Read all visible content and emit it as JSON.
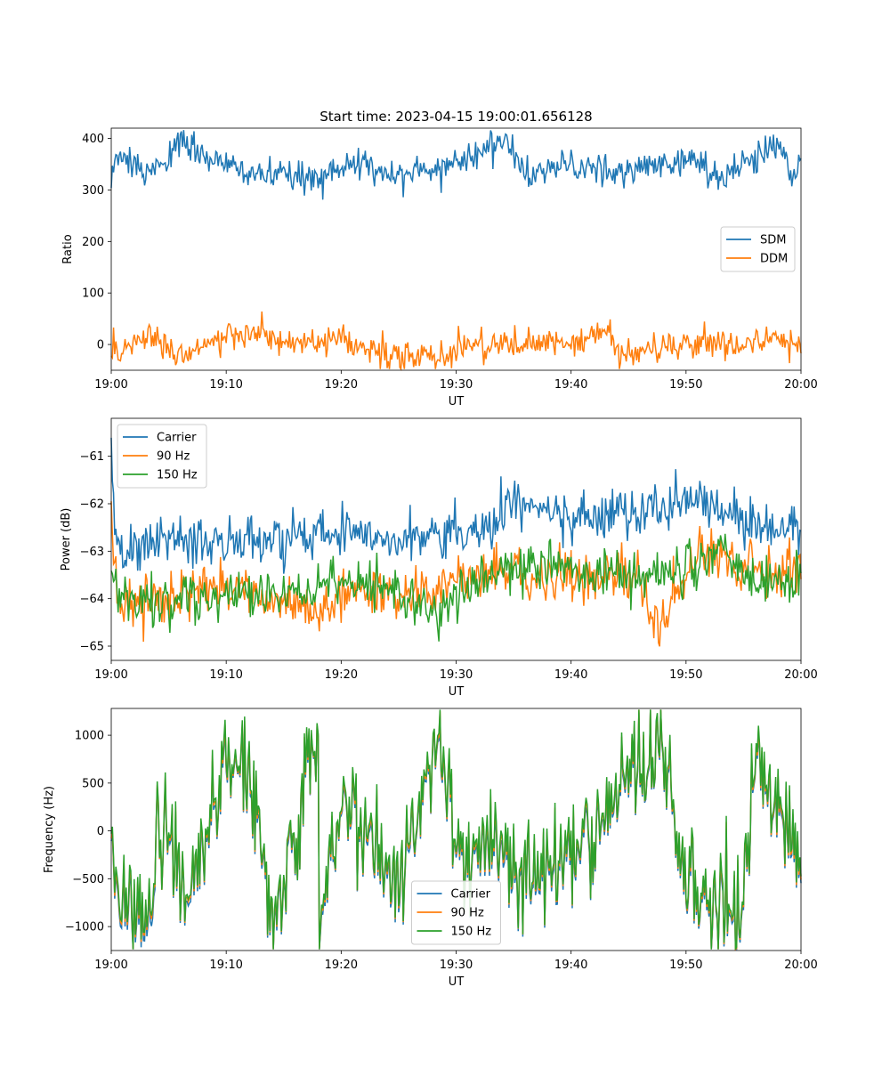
{
  "figure_title": "Start time: 2023-04-15 19:00:01.656128",
  "colors": {
    "blue": "#1f77b4",
    "orange": "#ff7f0e",
    "green": "#2ca02c"
  },
  "chart_data": [
    {
      "type": "line",
      "title": "Start time: 2023-04-15 19:00:01.656128",
      "xlabel": "UT",
      "ylabel": "Ratio",
      "x_range": [
        "19:00",
        "20:00"
      ],
      "x_ticks": [
        "19:00",
        "19:10",
        "19:20",
        "19:30",
        "19:40",
        "19:50",
        "20:00"
      ],
      "ylim": [
        -50,
        420
      ],
      "y_ticks": [
        0,
        100,
        200,
        300,
        400
      ],
      "legend_position": "center-right",
      "series": [
        {
          "name": "SDM",
          "color": "#1f77b4",
          "samples_per_minute": 10,
          "points": [
            [
              0,
              315
            ],
            [
              0.5,
              365
            ],
            [
              2.8,
              330
            ],
            [
              6.2,
              390
            ],
            [
              10,
              345
            ],
            [
              13.1,
              330
            ],
            [
              17.4,
              320
            ],
            [
              20,
              350
            ],
            [
              26.1,
              330
            ],
            [
              30,
              355
            ],
            [
              34,
              397
            ],
            [
              36.2,
              330
            ],
            [
              40,
              350
            ],
            [
              43.2,
              330
            ],
            [
              50,
              360
            ],
            [
              53.2,
              327
            ],
            [
              58.3,
              392
            ],
            [
              59.2,
              330
            ],
            [
              60,
              360
            ]
          ]
        },
        {
          "name": "DDM",
          "color": "#ff7f0e",
          "samples_per_minute": 10,
          "points": [
            [
              0,
              -10
            ],
            [
              0.3,
              -18
            ],
            [
              3.6,
              22
            ],
            [
              5.5,
              -20
            ],
            [
              8,
              0
            ],
            [
              12.6,
              25
            ],
            [
              15,
              0
            ],
            [
              20,
              5
            ],
            [
              25.2,
              -27
            ],
            [
              29.7,
              -20
            ],
            [
              30,
              0
            ],
            [
              40,
              0
            ],
            [
              43.5,
              27
            ],
            [
              44,
              -20
            ],
            [
              50,
              0
            ],
            [
              59.6,
              7
            ],
            [
              60,
              -5
            ]
          ]
        }
      ]
    },
    {
      "type": "line",
      "xlabel": "UT",
      "ylabel": "Power (dB)",
      "x_range": [
        "19:00",
        "20:00"
      ],
      "x_ticks": [
        "19:00",
        "19:10",
        "19:20",
        "19:30",
        "19:40",
        "19:50",
        "20:00"
      ],
      "ylim": [
        -65.3,
        -60.2
      ],
      "y_ticks": [
        -65,
        -64,
        -63,
        -62,
        -61
      ],
      "legend_position": "upper-left",
      "series": [
        {
          "name": "Carrier",
          "color": "#1f77b4",
          "samples_per_minute": 10,
          "points": [
            [
              0,
              -60.6
            ],
            [
              0.3,
              -62.5
            ],
            [
              1,
              -63.1
            ],
            [
              5,
              -62.7
            ],
            [
              10,
              -62.8
            ],
            [
              15,
              -62.8
            ],
            [
              20,
              -62.5
            ],
            [
              25,
              -62.7
            ],
            [
              30,
              -62.6
            ],
            [
              33,
              -62.5
            ],
            [
              35,
              -62.0
            ],
            [
              40,
              -62.3
            ],
            [
              45,
              -62.2
            ],
            [
              50,
              -62.0
            ],
            [
              52,
              -61.8
            ],
            [
              55,
              -62.5
            ],
            [
              58,
              -62.6
            ],
            [
              60,
              -62.3
            ]
          ]
        },
        {
          "name": "90 Hz",
          "color": "#ff7f0e",
          "samples_per_minute": 10,
          "points": [
            [
              0,
              -62.3
            ],
            [
              0.6,
              -64.2
            ],
            [
              5,
              -64.0
            ],
            [
              10,
              -63.7
            ],
            [
              15,
              -64.1
            ],
            [
              17.8,
              -64.4
            ],
            [
              20,
              -63.8
            ],
            [
              25,
              -63.9
            ],
            [
              30,
              -63.7
            ],
            [
              35,
              -63.4
            ],
            [
              40,
              -63.6
            ],
            [
              45,
              -63.5
            ],
            [
              47.8,
              -64.6
            ],
            [
              50,
              -63.4
            ],
            [
              51.5,
              -63.0
            ],
            [
              55,
              -63.3
            ],
            [
              60,
              -63.4
            ]
          ]
        },
        {
          "name": "150 Hz",
          "color": "#2ca02c",
          "samples_per_minute": 10,
          "points": [
            [
              0,
              -63.4
            ],
            [
              1,
              -64.0
            ],
            [
              5,
              -64.1
            ],
            [
              10,
              -64.0
            ],
            [
              15,
              -63.9
            ],
            [
              20,
              -63.7
            ],
            [
              25,
              -63.8
            ],
            [
              28.5,
              -64.4
            ],
            [
              30,
              -63.8
            ],
            [
              35,
              -63.3
            ],
            [
              40,
              -63.4
            ],
            [
              45,
              -63.5
            ],
            [
              50,
              -63.4
            ],
            [
              53,
              -62.9
            ],
            [
              55,
              -63.7
            ],
            [
              60,
              -63.5
            ]
          ]
        }
      ]
    },
    {
      "type": "line",
      "xlabel": "UT",
      "ylabel": "Frequency (Hz)",
      "x_range": [
        "19:00",
        "20:00"
      ],
      "x_ticks": [
        "19:00",
        "19:10",
        "19:20",
        "19:30",
        "19:40",
        "19:50",
        "20:00"
      ],
      "ylim": [
        -1250,
        1280
      ],
      "y_ticks": [
        -1000,
        -500,
        0,
        500,
        1000
      ],
      "legend_position": "lower-center",
      "series": [
        {
          "name": "Carrier",
          "color": "#1f77b4",
          "samples_per_minute": 10,
          "points": [
            [
              0,
              -80
            ],
            [
              0.6,
              -790
            ],
            [
              3.7,
              -1150
            ],
            [
              3.9,
              300
            ],
            [
              6.8,
              -700
            ],
            [
              11,
              1000
            ],
            [
              14.2,
              -900
            ],
            [
              18,
              1150
            ],
            [
              18.1,
              -950
            ],
            [
              20,
              300
            ],
            [
              25,
              -650
            ],
            [
              28.2,
              950
            ],
            [
              30,
              -150
            ],
            [
              35,
              -450
            ],
            [
              40,
              -300
            ],
            [
              47.8,
              950
            ],
            [
              50,
              -600
            ],
            [
              54.8,
              -900
            ],
            [
              56,
              700
            ],
            [
              60,
              -420
            ]
          ]
        },
        {
          "name": "90 Hz",
          "color": "#ff7f0e",
          "samples_per_minute": 10,
          "points": [
            [
              0,
              -50
            ],
            [
              0.6,
              -740
            ],
            [
              3.7,
              -1080
            ],
            [
              3.9,
              320
            ],
            [
              6.8,
              -650
            ],
            [
              11,
              1030
            ],
            [
              14.2,
              -850
            ],
            [
              18,
              1170
            ],
            [
              18.1,
              -900
            ],
            [
              20,
              330
            ],
            [
              25,
              -600
            ],
            [
              28.2,
              980
            ],
            [
              30,
              -110
            ],
            [
              35,
              -400
            ],
            [
              40,
              -250
            ],
            [
              47.8,
              980
            ],
            [
              50,
              -560
            ],
            [
              54.8,
              -860
            ],
            [
              56,
              730
            ],
            [
              60,
              -380
            ]
          ]
        },
        {
          "name": "150 Hz",
          "color": "#2ca02c",
          "samples_per_minute": 10,
          "points": [
            [
              0,
              0
            ],
            [
              0.6,
              -700
            ],
            [
              3.7,
              -1050
            ],
            [
              3.9,
              350
            ],
            [
              6.8,
              -620
            ],
            [
              11,
              1060
            ],
            [
              14.2,
              -820
            ],
            [
              18,
              1190
            ],
            [
              18.1,
              -870
            ],
            [
              20,
              360
            ],
            [
              25,
              -570
            ],
            [
              28.2,
              1010
            ],
            [
              30,
              -80
            ],
            [
              35,
              -370
            ],
            [
              40,
              -220
            ],
            [
              47.8,
              1000
            ],
            [
              50,
              -530
            ],
            [
              54.8,
              -830
            ],
            [
              56,
              760
            ],
            [
              60,
              -340
            ]
          ]
        }
      ]
    }
  ]
}
